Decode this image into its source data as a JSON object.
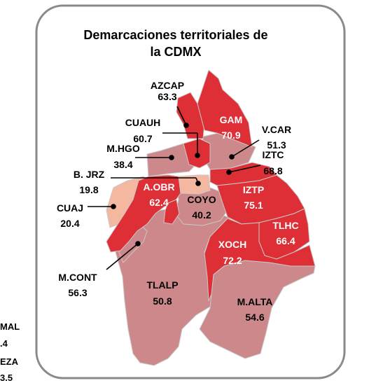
{
  "title_line1": "Demarcaciones territoriales de",
  "title_line2": "la CDMX",
  "colors": {
    "dark": "#dd2f35",
    "mid": "#cc888a",
    "light": "#f4b7a0",
    "border": "#c9c9c9",
    "frame": "#8a8a8a"
  },
  "regions": [
    {
      "id": "azcap",
      "name": "AZCAP",
      "value": "63.3",
      "shade": "dark"
    },
    {
      "id": "gam",
      "name": "GAM",
      "value": "70.9",
      "shade": "dark"
    },
    {
      "id": "cuauh",
      "name": "CUAUH",
      "value": "60.7",
      "shade": "dark"
    },
    {
      "id": "vcar",
      "name": "V.CAR",
      "value": "51.3",
      "shade": "mid"
    },
    {
      "id": "mhgo",
      "name": "M.HGO",
      "value": "38.4",
      "shade": "mid"
    },
    {
      "id": "iztc",
      "name": "IZTC",
      "value": "68.8",
      "shade": "dark"
    },
    {
      "id": "bjrz",
      "name": "B. JRZ",
      "value": "19.8",
      "shade": "light"
    },
    {
      "id": "aobr",
      "name": "A.OBR",
      "value": "62.4",
      "shade": "dark"
    },
    {
      "id": "coyo",
      "name": "COYO",
      "value": "40.2",
      "shade": "mid"
    },
    {
      "id": "iztp",
      "name": "IZTP",
      "value": "75.1",
      "shade": "dark"
    },
    {
      "id": "cuaj",
      "name": "CUAJ",
      "value": "20.4",
      "shade": "light"
    },
    {
      "id": "tlhc",
      "name": "TLHC",
      "value": "66.4",
      "shade": "dark"
    },
    {
      "id": "xoch",
      "name": "XOCH",
      "value": "72.2",
      "shade": "dark"
    },
    {
      "id": "mcont",
      "name": "M.CONT",
      "value": "56.3",
      "shade": "mid"
    },
    {
      "id": "tlalp",
      "name": "TLALP",
      "value": "50.8",
      "shade": "mid"
    },
    {
      "id": "malta",
      "name": "M.ALTA",
      "value": "54.6",
      "shade": "mid"
    }
  ],
  "cut_off_text": [
    "MAL",
    ".4",
    "EZA",
    "3.5"
  ]
}
